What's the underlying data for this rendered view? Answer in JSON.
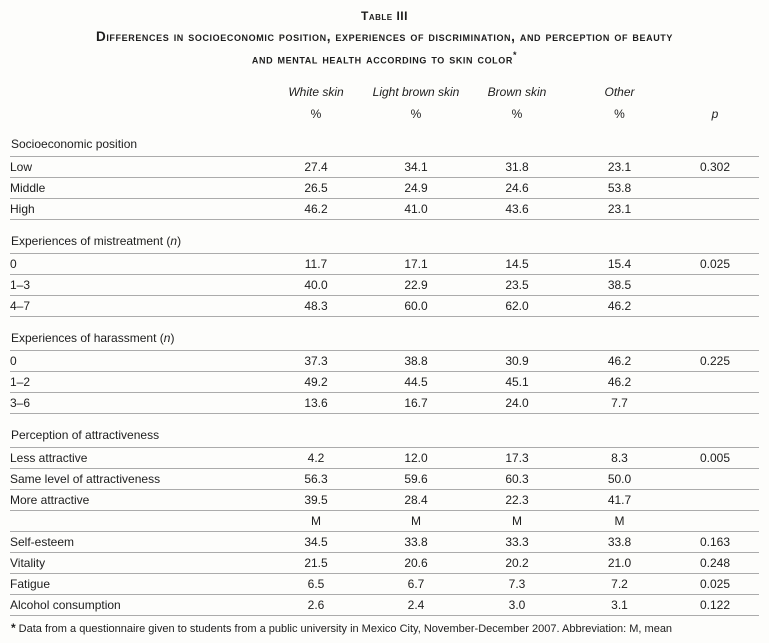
{
  "table": {
    "label": "Table III",
    "title_line1": "Differences in socioeconomic position, experiences of discrimination, and perception of beauty",
    "title_line2": "and mental health according to skin color",
    "title_marker": "*",
    "columns": [
      "White skin",
      "Light brown skin",
      "Brown skin",
      "Other"
    ],
    "percent_symbols": [
      "%",
      "%",
      "%",
      "%"
    ],
    "p_label": "p",
    "sections": [
      {
        "header_pre": "Socioeconomic position",
        "header_em": "",
        "header_post": "",
        "rows": [
          {
            "label": "Low",
            "values": [
              "27.4",
              "34.1",
              "31.8",
              "23.1"
            ],
            "p": "0.302"
          },
          {
            "label": "Middle",
            "values": [
              "26.5",
              "24.9",
              "24.6",
              "53.8"
            ],
            "p": ""
          },
          {
            "label": "High",
            "values": [
              "46.2",
              "41.0",
              "43.6",
              "23.1"
            ],
            "p": ""
          }
        ]
      },
      {
        "header_pre": "Experiences of mistreatment (",
        "header_em": "n",
        "header_post": ")",
        "rows": [
          {
            "label": "0",
            "values": [
              "11.7",
              "17.1",
              "14.5",
              "15.4"
            ],
            "p": "0.025"
          },
          {
            "label": "1–3",
            "values": [
              "40.0",
              "22.9",
              "23.5",
              "38.5"
            ],
            "p": ""
          },
          {
            "label": "4–7",
            "values": [
              "48.3",
              "60.0",
              "62.0",
              "46.2"
            ],
            "p": ""
          }
        ]
      },
      {
        "header_pre": "Experiences of harassment (",
        "header_em": "n",
        "header_post": ")",
        "rows": [
          {
            "label": "0",
            "values": [
              "37.3",
              "38.8",
              "30.9",
              "46.2"
            ],
            "p": "0.225"
          },
          {
            "label": "1–2",
            "values": [
              "49.2",
              "44.5",
              "45.1",
              "46.2"
            ],
            "p": ""
          },
          {
            "label": "3–6",
            "values": [
              "13.6",
              "16.7",
              "24.0",
              "7.7"
            ],
            "p": ""
          }
        ]
      },
      {
        "header_pre": "Perception of attractiveness",
        "header_em": "",
        "header_post": "",
        "rows": [
          {
            "label": "Less attractive",
            "values": [
              "4.2",
              "12.0",
              "17.3",
              "8.3"
            ],
            "p": "0.005"
          },
          {
            "label": "Same level of attractiveness",
            "values": [
              "56.3",
              "59.6",
              "60.3",
              "50.0"
            ],
            "p": ""
          },
          {
            "label": "More attractive",
            "values": [
              "39.5",
              "28.4",
              "22.3",
              "41.7"
            ],
            "p": ""
          }
        ]
      },
      {
        "col_symbols": [
          "M",
          "M",
          "M",
          "M"
        ],
        "rows": [
          {
            "label": "Self-esteem",
            "values": [
              "34.5",
              "33.8",
              "33.3",
              "33.8"
            ],
            "p": "0.163"
          },
          {
            "label": "Vitality",
            "values": [
              "21.5",
              "20.6",
              "20.2",
              "21.0"
            ],
            "p": "0.248"
          },
          {
            "label": "Fatigue",
            "values": [
              "6.5",
              "6.7",
              "7.3",
              "7.2"
            ],
            "p": "0.025"
          },
          {
            "label": "Alcohol consumption",
            "values": [
              "2.6",
              "2.4",
              "3.0",
              "3.1"
            ],
            "p": "0.122"
          }
        ]
      }
    ],
    "footnote": {
      "marker": "*",
      "text": "Data from a questionnaire given to students from a public university in Mexico City, November-December 2007. Abbreviation: M, mean"
    }
  }
}
